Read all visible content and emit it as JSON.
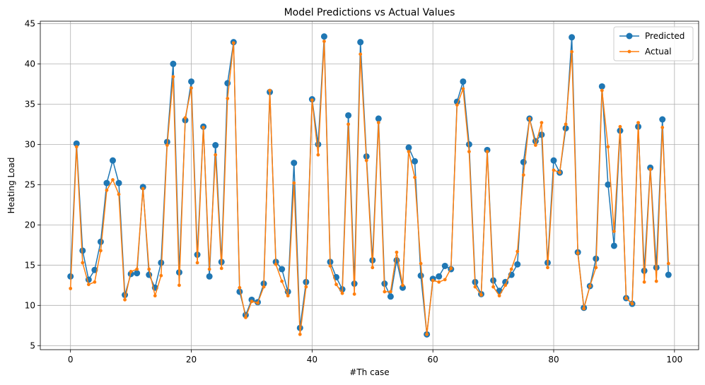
{
  "chart_data": {
    "type": "line",
    "title": "Model Predictions vs Actual Values",
    "xlabel": "#Th case",
    "ylabel": "Heating Load",
    "xlim": [
      -5,
      104
    ],
    "ylim": [
      4.5,
      45.3
    ],
    "xticks": [
      0,
      20,
      40,
      60,
      80,
      100
    ],
    "yticks": [
      5,
      10,
      15,
      20,
      25,
      30,
      35,
      40,
      45
    ],
    "grid": true,
    "legend_position": "top-right",
    "x": [
      0,
      1,
      2,
      3,
      4,
      5,
      6,
      7,
      8,
      9,
      10,
      11,
      12,
      13,
      14,
      15,
      16,
      17,
      18,
      19,
      20,
      21,
      22,
      23,
      24,
      25,
      26,
      27,
      28,
      29,
      30,
      31,
      32,
      33,
      34,
      35,
      36,
      37,
      38,
      39,
      40,
      41,
      42,
      43,
      44,
      45,
      46,
      47,
      48,
      49,
      50,
      51,
      52,
      53,
      54,
      55,
      56,
      57,
      58,
      59,
      60,
      61,
      62,
      63,
      64,
      65,
      66,
      67,
      68,
      69,
      70,
      71,
      72,
      73,
      74,
      75,
      76,
      77,
      78,
      79,
      80,
      81,
      82,
      83,
      84,
      85,
      86,
      87,
      88,
      89,
      90,
      91,
      92,
      93,
      94,
      95,
      96,
      97,
      98,
      99
    ],
    "series": [
      {
        "name": "Predicted",
        "color": "#1f77b4",
        "marker": "circle-large",
        "values": [
          13.6,
          30.1,
          16.8,
          13.2,
          14.4,
          17.9,
          25.2,
          28.0,
          25.2,
          11.3,
          13.9,
          14.0,
          24.7,
          13.8,
          12.2,
          15.3,
          30.3,
          40.0,
          14.1,
          33.0,
          37.8,
          16.3,
          32.2,
          13.6,
          29.9,
          15.4,
          37.6,
          42.7,
          11.7,
          8.8,
          10.7,
          10.4,
          12.7,
          36.5,
          15.4,
          14.5,
          11.7,
          27.7,
          7.2,
          12.9,
          35.6,
          30.0,
          43.4,
          15.4,
          13.5,
          12.0,
          33.6,
          12.7,
          42.7,
          28.5,
          15.6,
          33.2,
          12.7,
          11.1,
          15.6,
          12.2,
          29.6,
          27.9,
          13.7,
          6.4,
          13.3,
          13.6,
          14.9,
          14.5,
          35.3,
          37.8,
          30.0,
          12.9,
          11.4,
          29.3,
          13.1,
          11.8,
          12.9,
          13.8,
          15.1,
          27.8,
          33.2,
          30.4,
          31.2,
          15.3,
          28.0,
          26.5,
          32.0,
          43.3,
          16.6,
          9.7,
          12.4,
          15.8,
          37.2,
          25.0,
          17.4,
          31.7,
          10.9,
          10.2,
          32.2,
          14.3,
          27.1,
          14.7,
          33.1,
          13.8
        ]
      },
      {
        "name": "Actual",
        "color": "#ff7f0e",
        "marker": "circle-small",
        "values": [
          12.1,
          29.7,
          15.3,
          12.6,
          12.9,
          16.8,
          24.3,
          25.6,
          23.8,
          10.7,
          14.2,
          14.5,
          24.5,
          14.5,
          11.2,
          13.7,
          29.9,
          38.4,
          12.5,
          33.3,
          37.0,
          15.3,
          32.1,
          14.5,
          28.7,
          14.6,
          35.7,
          42.6,
          12.2,
          8.5,
          10.5,
          10.3,
          12.3,
          36.7,
          15.1,
          13.0,
          11.2,
          25.2,
          6.4,
          12.3,
          35.5,
          28.7,
          42.8,
          14.9,
          12.6,
          11.5,
          32.5,
          11.4,
          41.2,
          28.0,
          14.7,
          32.7,
          11.7,
          11.7,
          16.6,
          12.5,
          29.1,
          25.9,
          15.2,
          6.4,
          13.1,
          12.9,
          13.2,
          14.6,
          34.9,
          36.9,
          29.1,
          12.3,
          11.3,
          29.1,
          12.3,
          11.2,
          12.5,
          14.5,
          16.7,
          26.2,
          33.2,
          29.9,
          32.7,
          14.7,
          26.8,
          26.5,
          32.5,
          41.5,
          16.5,
          9.6,
          12.4,
          14.7,
          36.7,
          29.7,
          19.2,
          32.2,
          10.9,
          10.2,
          32.7,
          12.9,
          26.9,
          13.0,
          32.1,
          15.2
        ]
      }
    ]
  }
}
